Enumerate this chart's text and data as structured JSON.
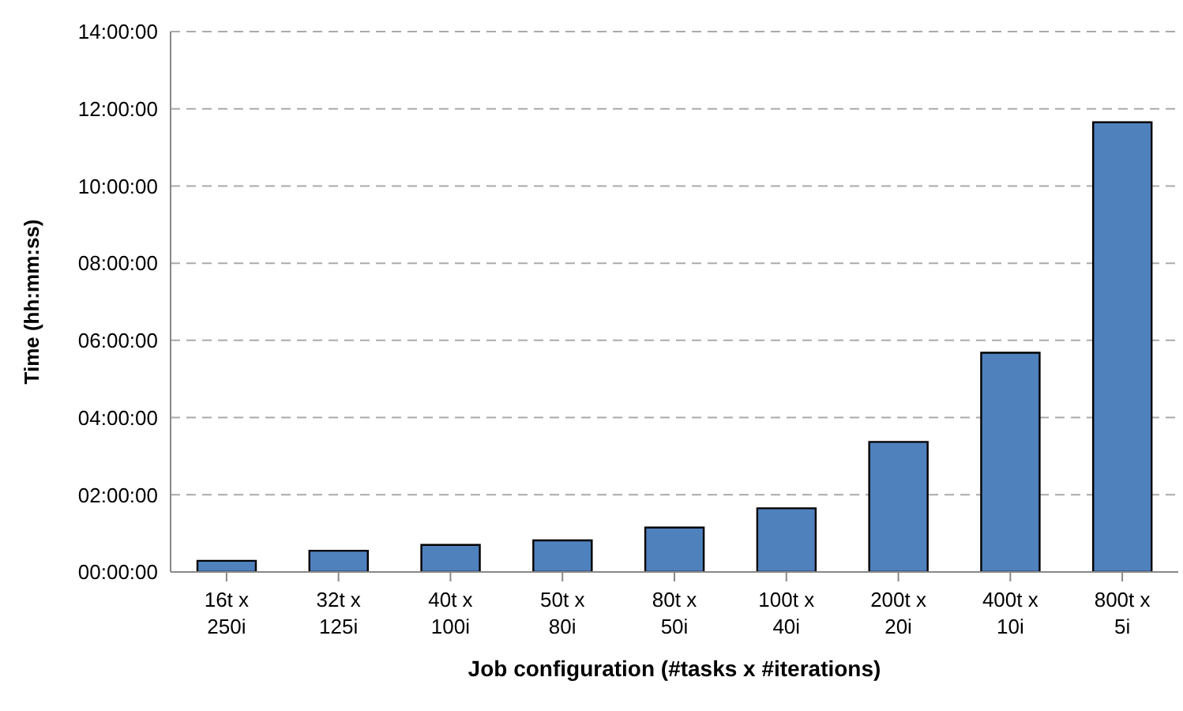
{
  "chart_data": {
    "type": "bar",
    "xlabel": "Job configuration (#tasks x #iterations)",
    "ylabel": "Time (hh:mm:ss)",
    "categories": [
      "16t x 250i",
      "32t x 125i",
      "40t x 100i",
      "50t x 80i",
      "80t x 50i",
      "100t x 40i",
      "200t x 20i",
      "400t x 10i",
      "800t x 5i"
    ],
    "values": [
      0.29,
      0.55,
      0.7,
      0.82,
      1.15,
      1.65,
      3.37,
      5.68,
      11.65
    ],
    "color": "#4f81bd",
    "ylim": [
      0,
      14
    ],
    "yticks": [
      {
        "value": 0,
        "label": "00:00:00"
      },
      {
        "value": 2,
        "label": "02:00:00"
      },
      {
        "value": 4,
        "label": "04:00:00"
      },
      {
        "value": 6,
        "label": "06:00:00"
      },
      {
        "value": 8,
        "label": "08:00:00"
      },
      {
        "value": 10,
        "label": "10:00:00"
      },
      {
        "value": 12,
        "label": "12:00:00"
      },
      {
        "value": 14,
        "label": "14:00:00"
      }
    ],
    "grid": "y"
  }
}
